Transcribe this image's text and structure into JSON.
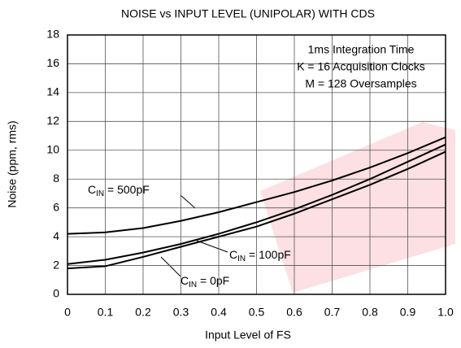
{
  "chart_data": {
    "type": "line",
    "title": "NOISE vs INPUT LEVEL (UNIPOLAR) WITH CDS",
    "x_label": "Input Level of FS",
    "y_label": "Noise (ppm, rms)",
    "x": [
      0,
      0.1,
      0.2,
      0.3,
      0.4,
      0.5,
      0.6,
      0.7,
      0.8,
      0.9,
      1.0
    ],
    "series": [
      {
        "label": [
          "C",
          "IN",
          " = 500pF"
        ],
        "color": "#000000",
        "values": [
          4.2,
          4.3,
          4.6,
          5.1,
          5.7,
          6.4,
          7.1,
          7.9,
          8.8,
          9.8,
          10.9
        ]
      },
      {
        "label": [
          "C",
          "IN",
          " = 100pF"
        ],
        "color": "#000000",
        "values": [
          2.1,
          2.4,
          2.9,
          3.5,
          4.2,
          5.0,
          5.9,
          6.9,
          8.0,
          9.2,
          10.4
        ]
      },
      {
        "label": [
          "C",
          "IN",
          " = 0pF"
        ],
        "color": "#000000",
        "values": [
          1.8,
          1.95,
          2.6,
          3.3,
          4.0,
          4.7,
          5.6,
          6.6,
          7.6,
          8.7,
          9.9
        ]
      }
    ],
    "annotation": [
      "1ms Integration Time",
      "K = 16 Acquisition Clocks",
      "M = 128 Oversamples"
    ],
    "xlim": [
      0,
      1.0
    ],
    "xticks": [
      0,
      0.1,
      0.2,
      0.3,
      0.4,
      0.5,
      0.6,
      0.7,
      0.8,
      0.9,
      {
        "value": 1.0,
        "label": "1.0"
      }
    ],
    "ylim": [
      0,
      18
    ],
    "yticks": [
      0,
      2,
      4,
      6,
      8,
      10,
      12,
      14,
      16,
      18
    ],
    "grid": true
  }
}
